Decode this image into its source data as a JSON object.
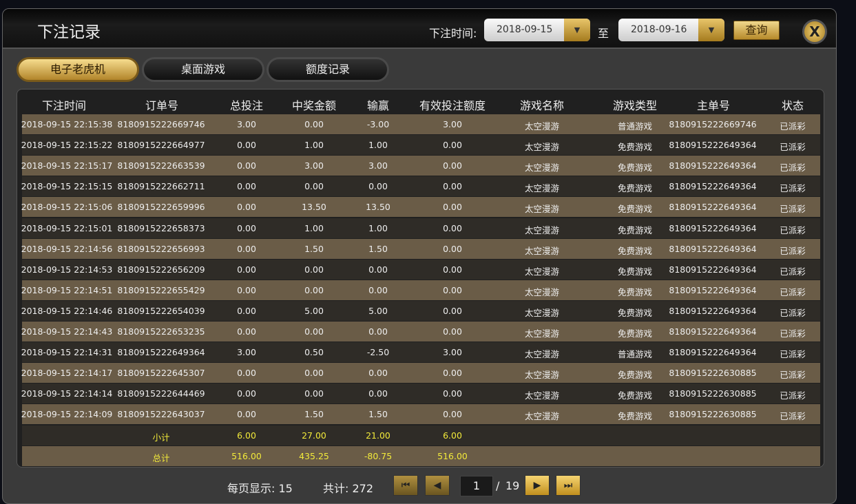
{
  "title": "下注记录",
  "filter": {
    "label": "下注时间:",
    "from": "2018-09-15",
    "to_label": "至",
    "to": "2018-09-16",
    "query": "查询",
    "close": "X"
  },
  "tabs": [
    {
      "label": "电子老虎机",
      "active": true
    },
    {
      "label": "桌面游戏"
    },
    {
      "label": "额度记录"
    }
  ],
  "columns": [
    "下注时间",
    "订单号",
    "总投注",
    "中奖金额",
    "输赢",
    "有效投注额度",
    "游戏名称",
    "游戏类型",
    "主单号",
    "状态"
  ],
  "rows": [
    [
      "2018-09-15 22:15:38",
      "8180915222669746",
      "3.00",
      "0.00",
      "-3.00",
      "3.00",
      "太空漫游",
      "普通游戏",
      "8180915222669746",
      "已派彩"
    ],
    [
      "2018-09-15 22:15:22",
      "8180915222664977",
      "0.00",
      "1.00",
      "1.00",
      "0.00",
      "太空漫游",
      "免费游戏",
      "8180915222649364",
      "已派彩"
    ],
    [
      "2018-09-15 22:15:17",
      "8180915222663539",
      "0.00",
      "3.00",
      "3.00",
      "0.00",
      "太空漫游",
      "免费游戏",
      "8180915222649364",
      "已派彩"
    ],
    [
      "2018-09-15 22:15:15",
      "8180915222662711",
      "0.00",
      "0.00",
      "0.00",
      "0.00",
      "太空漫游",
      "免费游戏",
      "8180915222649364",
      "已派彩"
    ],
    [
      "2018-09-15 22:15:06",
      "8180915222659996",
      "0.00",
      "13.50",
      "13.50",
      "0.00",
      "太空漫游",
      "免费游戏",
      "8180915222649364",
      "已派彩"
    ],
    [
      "2018-09-15 22:15:01",
      "8180915222658373",
      "0.00",
      "1.00",
      "1.00",
      "0.00",
      "太空漫游",
      "免费游戏",
      "8180915222649364",
      "已派彩"
    ],
    [
      "2018-09-15 22:14:56",
      "8180915222656993",
      "0.00",
      "1.50",
      "1.50",
      "0.00",
      "太空漫游",
      "免费游戏",
      "8180915222649364",
      "已派彩"
    ],
    [
      "2018-09-15 22:14:53",
      "8180915222656209",
      "0.00",
      "0.00",
      "0.00",
      "0.00",
      "太空漫游",
      "免费游戏",
      "8180915222649364",
      "已派彩"
    ],
    [
      "2018-09-15 22:14:51",
      "8180915222655429",
      "0.00",
      "0.00",
      "0.00",
      "0.00",
      "太空漫游",
      "免费游戏",
      "8180915222649364",
      "已派彩"
    ],
    [
      "2018-09-15 22:14:46",
      "8180915222654039",
      "0.00",
      "5.00",
      "5.00",
      "0.00",
      "太空漫游",
      "免费游戏",
      "8180915222649364",
      "已派彩"
    ],
    [
      "2018-09-15 22:14:43",
      "8180915222653235",
      "0.00",
      "0.00",
      "0.00",
      "0.00",
      "太空漫游",
      "免费游戏",
      "8180915222649364",
      "已派彩"
    ],
    [
      "2018-09-15 22:14:31",
      "8180915222649364",
      "3.00",
      "0.50",
      "-2.50",
      "3.00",
      "太空漫游",
      "普通游戏",
      "8180915222649364",
      "已派彩"
    ],
    [
      "2018-09-15 22:14:17",
      "8180915222645307",
      "0.00",
      "0.00",
      "0.00",
      "0.00",
      "太空漫游",
      "免费游戏",
      "8180915222630885",
      "已派彩"
    ],
    [
      "2018-09-15 22:14:14",
      "8180915222644469",
      "0.00",
      "0.00",
      "0.00",
      "0.00",
      "太空漫游",
      "免费游戏",
      "8180915222630885",
      "已派彩"
    ],
    [
      "2018-09-15 22:14:09",
      "8180915222643037",
      "0.00",
      "1.50",
      "1.50",
      "0.00",
      "太空漫游",
      "免费游戏",
      "8180915222630885",
      "已派彩"
    ]
  ],
  "subtotal": {
    "label": "小计",
    "total_bet": "6.00",
    "win": "27.00",
    "net": "21.00",
    "valid": "6.00"
  },
  "grandtotal": {
    "label": "总计",
    "total_bet": "516.00",
    "win": "435.25",
    "net": "-80.75",
    "valid": "516.00"
  },
  "pagination": {
    "per_page": "每页显示: 15",
    "total": "共计: 272",
    "page": "1",
    "sep": "/",
    "pages": "19"
  }
}
